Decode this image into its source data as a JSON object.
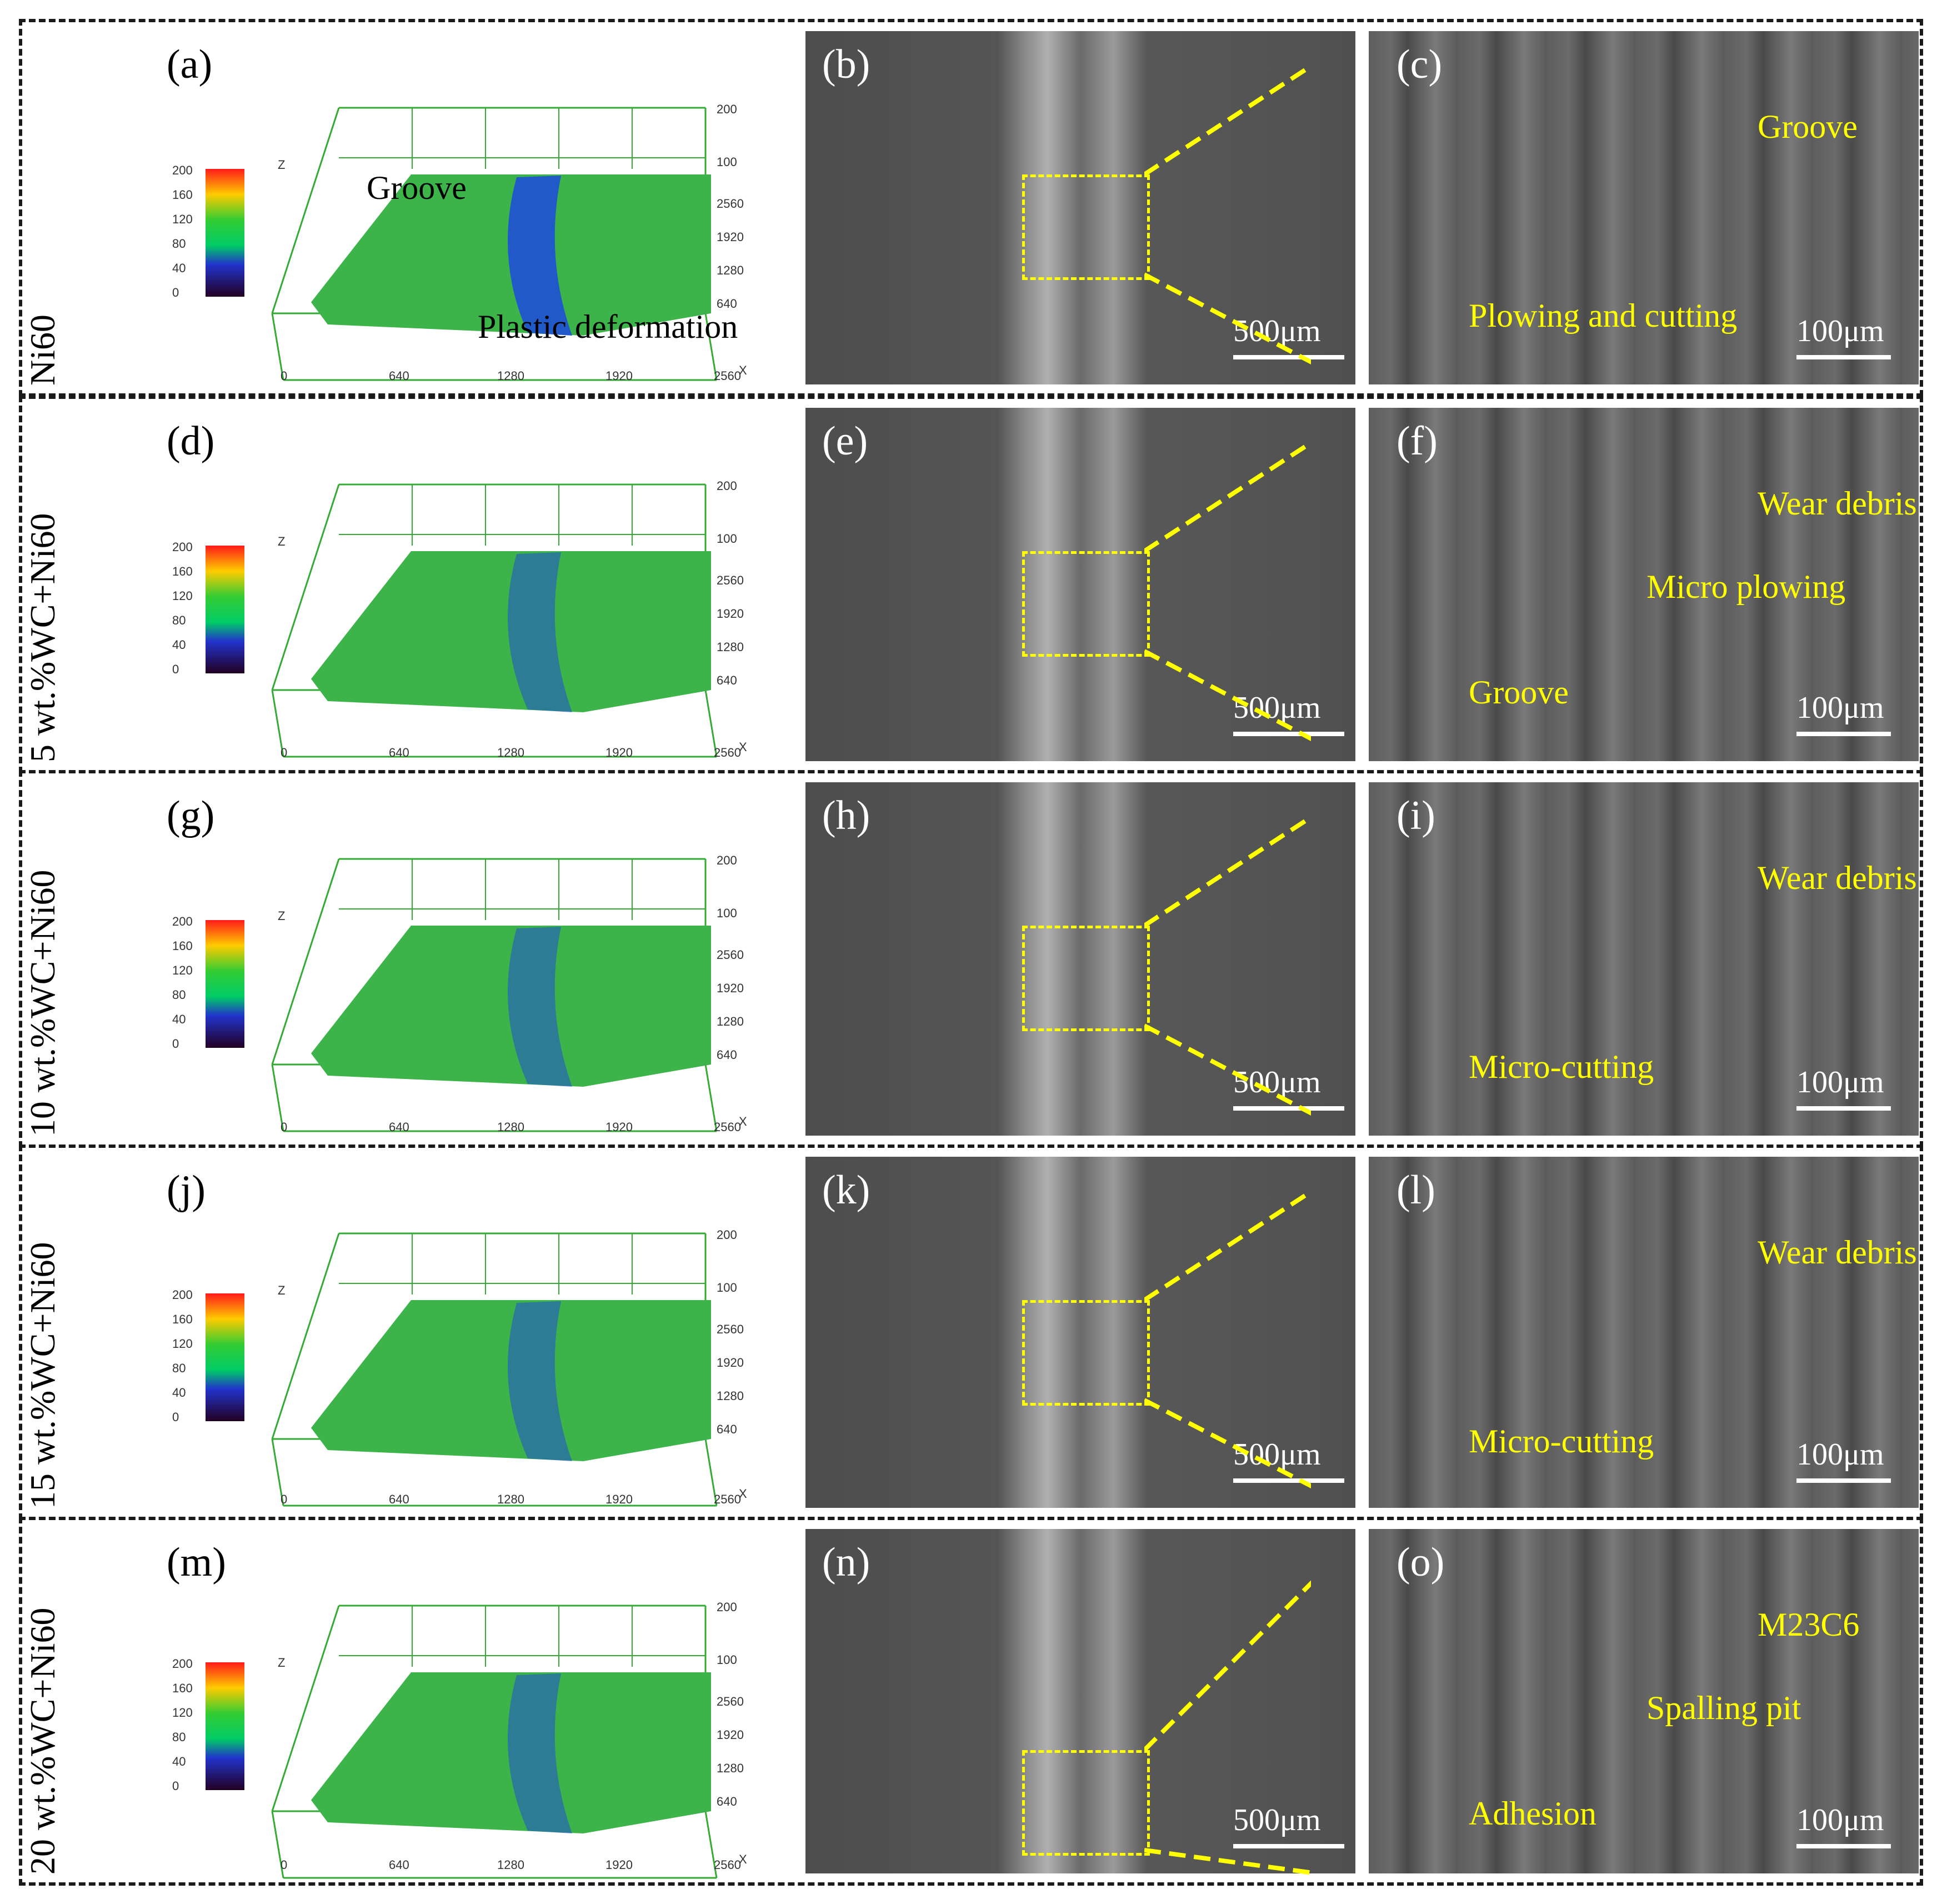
{
  "rows": [
    {
      "side_label": "Ni60",
      "panels": [
        "(a)",
        "(b)",
        "(c)"
      ],
      "annotations_3d": [
        "Groove",
        "Plastic deformation"
      ],
      "annotations_c": [
        "Groove",
        "Plowing  and cutting"
      ]
    },
    {
      "side_label": "5 wt.%WC+Ni60",
      "panels": [
        "(d)",
        "(e)",
        "(f)"
      ],
      "annotations_c": [
        "Wear debris",
        "Groove",
        "Micro plowing"
      ]
    },
    {
      "side_label": "10 wt.%WC+Ni60",
      "panels": [
        "(g)",
        "(h)",
        "(i)"
      ],
      "annotations_c": [
        "Wear debris",
        "Micro-cutting"
      ]
    },
    {
      "side_label": "15 wt.%WC+Ni60",
      "panels": [
        "(j)",
        "(k)",
        "(l)"
      ],
      "annotations_c": [
        "Wear debris",
        "Micro-cutting"
      ]
    },
    {
      "side_label": "20 wt.%WC+Ni60",
      "panels": [
        "(m)",
        "(n)",
        "(o)"
      ],
      "annotations_c": [
        "M23C6",
        "Adhesion",
        "Spalling pit"
      ]
    }
  ],
  "scale_low": "500μm",
  "scale_high": "100μm",
  "colorbar_ticks": [
    "200",
    "160",
    "120",
    "80",
    "40",
    "0"
  ],
  "x_ticks": [
    "0",
    "640",
    "1280",
    "1920",
    "2560"
  ],
  "y_ticks": [
    "2560",
    "1920",
    "1280",
    "640"
  ],
  "z_ticks": [
    "200",
    "100"
  ],
  "axis_labels": {
    "x": "X",
    "z": "Z"
  },
  "colors": {
    "surface": "#3cb44a",
    "groove": "#1f4fd6",
    "callout": "#ffff00",
    "sem_bg": "#5a5a5a"
  }
}
